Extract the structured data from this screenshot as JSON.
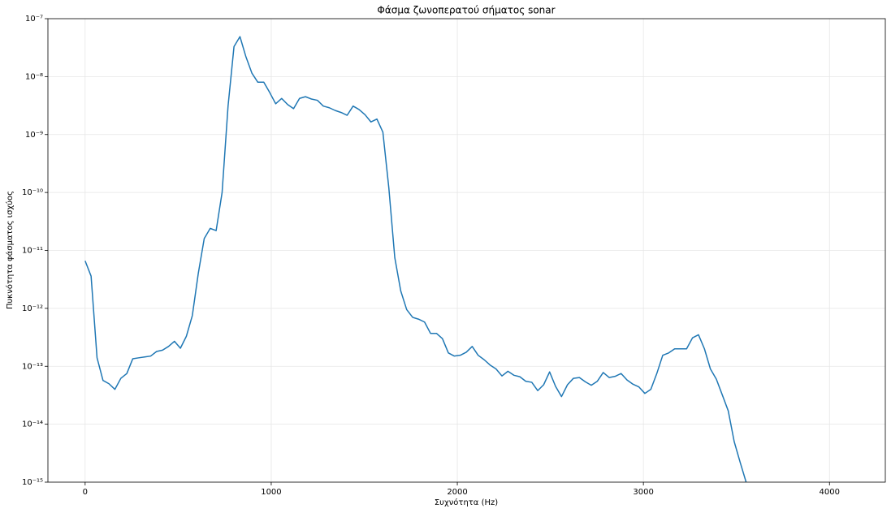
{
  "chart_data": {
    "type": "line",
    "title": "Φάσμα ζωνοπερατού σήματος sonar",
    "xlabel": "Συχνότητα (Hz)",
    "ylabel": "Πυκνότητα φάσματος ισχύος",
    "yscale": "log",
    "grid": true,
    "x": [
      0,
      32,
      64,
      96,
      128,
      160,
      192,
      224,
      256,
      288,
      320,
      352,
      384,
      416,
      448,
      480,
      512,
      544,
      576,
      608,
      640,
      672,
      704,
      736,
      768,
      800,
      832,
      864,
      896,
      928,
      960,
      992,
      1024,
      1056,
      1088,
      1120,
      1152,
      1184,
      1216,
      1248,
      1280,
      1312,
      1344,
      1376,
      1408,
      1440,
      1472,
      1504,
      1536,
      1568,
      1600,
      1632,
      1664,
      1696,
      1728,
      1760,
      1792,
      1824,
      1856,
      1888,
      1920,
      1952,
      1984,
      2016,
      2048,
      2080,
      2112,
      2144,
      2176,
      2208,
      2240,
      2272,
      2304,
      2336,
      2368,
      2400,
      2432,
      2464,
      2496,
      2528,
      2560,
      2592,
      2624,
      2656,
      2688,
      2720,
      2752,
      2784,
      2816,
      2848,
      2880,
      2912,
      2944,
      2976,
      3008,
      3040,
      3072,
      3104,
      3136,
      3168,
      3200,
      3232,
      3264,
      3296,
      3328,
      3360,
      3392,
      3424,
      3456,
      3488,
      3520,
      3552
    ],
    "series": [
      {
        "color": "#1f77b4",
        "values": [
          6.6e-12,
          3.6e-12,
          1.4e-13,
          5.7e-14,
          5e-14,
          4e-14,
          6.2e-14,
          7.5e-14,
          1.35e-13,
          1.4e-13,
          1.45e-13,
          1.5e-13,
          1.8e-13,
          1.9e-13,
          2.2e-13,
          2.7e-13,
          2.05e-13,
          3.3e-13,
          7.5e-13,
          4e-12,
          1.6e-11,
          2.4e-11,
          2.2e-11,
          1e-10,
          3.1e-09,
          3.3e-08,
          4.9e-08,
          2.2e-08,
          1.15e-08,
          8e-09,
          8e-09,
          5.3e-09,
          3.4e-09,
          4.2e-09,
          3.3e-09,
          2.8e-09,
          4.2e-09,
          4.5e-09,
          4.1e-09,
          3.9e-09,
          3.1e-09,
          2.9e-09,
          2.6e-09,
          2.4e-09,
          2.15e-09,
          3.1e-09,
          2.7e-09,
          2.2e-09,
          1.65e-09,
          1.85e-09,
          1.1e-09,
          1.2e-10,
          7.5e-12,
          2e-12,
          9.5e-13,
          7e-13,
          6.5e-13,
          5.8e-13,
          3.7e-13,
          3.7e-13,
          3e-13,
          1.7e-13,
          1.5e-13,
          1.55e-13,
          1.75e-13,
          2.2e-13,
          1.55e-13,
          1.3e-13,
          1.05e-13,
          9e-14,
          6.8e-14,
          8.2e-14,
          7e-14,
          6.6e-14,
          5.5e-14,
          5.3e-14,
          3.8e-14,
          4.8e-14,
          8e-14,
          4.5e-14,
          3e-14,
          4.8e-14,
          6.2e-14,
          6.4e-14,
          5.4e-14,
          4.7e-14,
          5.5e-14,
          7.8e-14,
          6.4e-14,
          6.7e-14,
          7.5e-14,
          5.8e-14,
          4.9e-14,
          4.4e-14,
          3.4e-14,
          4e-14,
          7.5e-14,
          1.55e-13,
          1.7e-13,
          2e-13,
          2e-13,
          2e-13,
          3.1e-13,
          3.5e-13,
          2e-13,
          9e-14,
          6e-14,
          3.2e-14,
          1.7e-14,
          5e-15,
          2.2e-15,
          1e-15
        ]
      }
    ],
    "xlim": [
      -200,
      4300
    ],
    "xticks": [
      0,
      1000,
      2000,
      3000,
      4000
    ],
    "ylim": [
      1e-15,
      1e-07
    ],
    "yticks": [
      {
        "value": 1e-15,
        "label": "10⁻¹⁵"
      },
      {
        "value": 1e-14,
        "label": "10⁻¹⁴"
      },
      {
        "value": 1e-13,
        "label": "10⁻¹³"
      },
      {
        "value": 1e-12,
        "label": "10⁻¹²"
      },
      {
        "value": 1e-11,
        "label": "10⁻¹¹"
      },
      {
        "value": 1e-10,
        "label": "10⁻¹⁰"
      },
      {
        "value": 1e-09,
        "label": "10⁻⁹"
      },
      {
        "value": 1e-08,
        "label": "10⁻⁸"
      },
      {
        "value": 1e-07,
        "label": "10⁻⁷"
      }
    ]
  }
}
